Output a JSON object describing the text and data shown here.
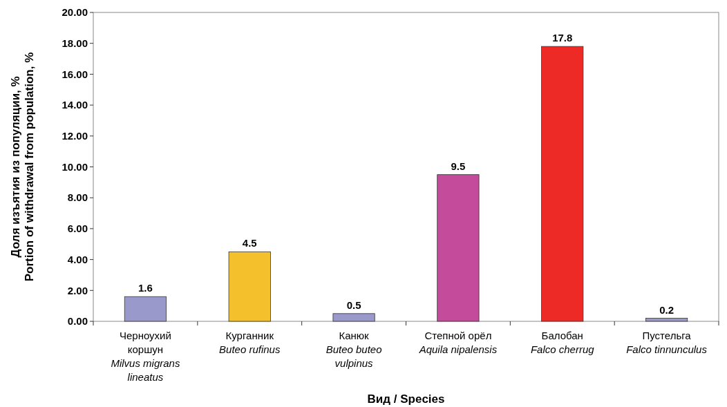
{
  "chart_data": {
    "type": "bar",
    "xlabel": "Вид / Species",
    "ylabel": "Доля изъятия из популяции, %\nPortion of withdrawal from population, %",
    "categories": [
      "Черноухий\nкоршун\nMilvus migrans\nlineatus",
      "Курганник\nButeo rufinus",
      "Канюк\nButeo buteo\nvulpinus",
      "Степной орёл\nAquila nipalensis",
      "Балобан\nFalco cherrug",
      "Пустельга\nFalco tinnunculus"
    ],
    "values": [
      1.6,
      4.5,
      0.5,
      9.5,
      17.8,
      0.2
    ],
    "colors": [
      "#9999cc",
      "#f4c12c",
      "#9999cc",
      "#c44b9b",
      "#ee2a26",
      "#9999cc"
    ],
    "ylim": [
      0,
      20
    ],
    "yticks": [
      {
        "value": 0,
        "label": "0.00"
      },
      {
        "value": 2,
        "label": "2.00"
      },
      {
        "value": 4,
        "label": "4.00"
      },
      {
        "value": 6,
        "label": "6.00"
      },
      {
        "value": 8,
        "label": "8.00"
      },
      {
        "value": 10,
        "label": "10.00"
      },
      {
        "value": 12,
        "label": "12.00"
      },
      {
        "value": 14,
        "label": "14.00"
      },
      {
        "value": 16,
        "label": "16.00"
      },
      {
        "value": 18,
        "label": "18.00"
      },
      {
        "value": 20,
        "label": "20.00"
      }
    ],
    "data_labels": true
  }
}
